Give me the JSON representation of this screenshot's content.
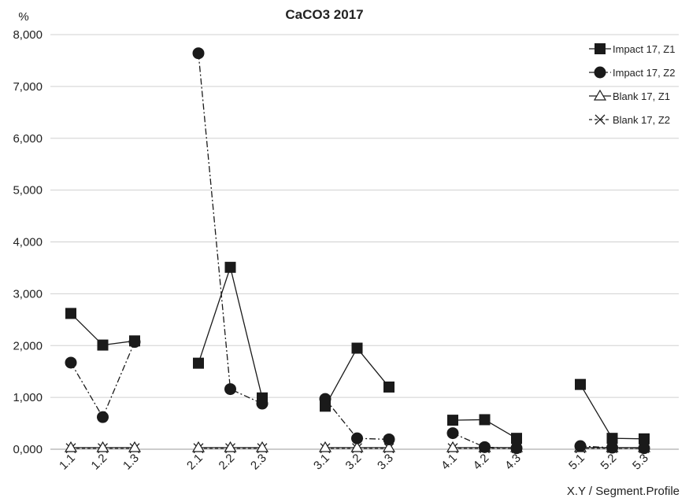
{
  "chart_data": {
    "type": "line",
    "title": "CaCO3 2017",
    "ylabel": "%",
    "xlabel": "X.Y  / Segment.Profile",
    "ylim": [
      0,
      8000
    ],
    "yticks": [
      "0,000",
      "1,000",
      "2,000",
      "3,000",
      "4,000",
      "5,000",
      "6,000",
      "7,000",
      "8,000"
    ],
    "ytick_values": [
      0,
      1000,
      2000,
      3000,
      4000,
      5000,
      6000,
      7000,
      8000
    ],
    "grid": true,
    "legend_position": "top-right",
    "categories": [
      "1.1",
      "1.2",
      "1.3",
      "2.1",
      "2.2",
      "2.3",
      "3.1",
      "3.2",
      "3.3",
      "4.1",
      "4.2",
      "4.3",
      "5.1",
      "5.2",
      "5.3"
    ],
    "groups": [
      [
        0,
        1,
        2
      ],
      [
        3,
        4,
        5
      ],
      [
        6,
        7,
        8
      ],
      [
        9,
        10,
        11
      ],
      [
        12,
        13,
        14
      ]
    ],
    "series": [
      {
        "name": "Impact 17, Z1",
        "marker": "square",
        "line": "solid",
        "values": [
          2620,
          2010,
          2090,
          1660,
          3510,
          990,
          830,
          1950,
          1200,
          560,
          570,
          210,
          1250,
          210,
          200
        ]
      },
      {
        "name": "Impact 17, Z2",
        "marker": "circle",
        "line": "dashdot",
        "values": [
          1670,
          620,
          2070,
          7640,
          1160,
          880,
          970,
          210,
          190,
          310,
          40,
          20,
          60,
          30,
          20
        ]
      },
      {
        "name": "Blank 17, Z1",
        "marker": "triangle",
        "line": "solid",
        "values": [
          30,
          30,
          30,
          30,
          30,
          30,
          30,
          30,
          30,
          30,
          30,
          30,
          30,
          30,
          30
        ]
      },
      {
        "name": "Blank 17, Z2",
        "marker": "x",
        "line": "dashed",
        "values": [
          20,
          20,
          20,
          20,
          20,
          20,
          20,
          20,
          20,
          20,
          20,
          20,
          20,
          20,
          20
        ]
      }
    ]
  }
}
